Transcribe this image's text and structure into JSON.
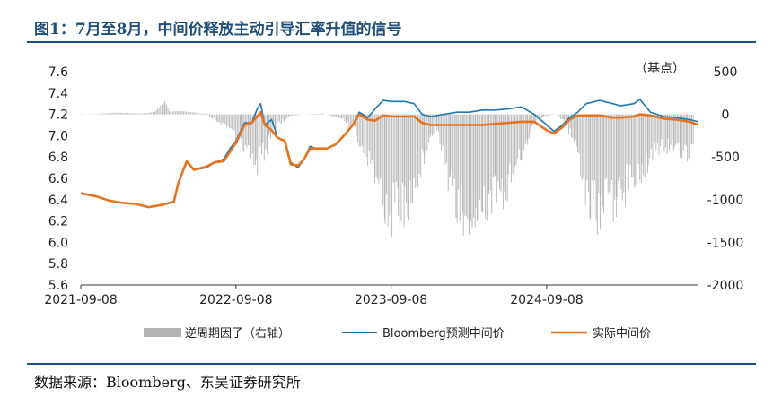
{
  "title": "图1：7月至8月，中间价释放主动引导汇率升值的信号",
  "source": "数据来源：Bloomberg、东吴证券研究所",
  "colors": {
    "title": "#1f4e79",
    "bloomberg": "#1f77b4",
    "actual": "#e8731e",
    "factor": "#b3b3b3"
  },
  "chart_data": {
    "type": "line",
    "title": "",
    "y_right_unit": "（基点）",
    "x_tick_labels": [
      "2021-09-08",
      "2022-09-08",
      "2023-09-08",
      "2024-09-08"
    ],
    "x_range": [
      "2021-09-08",
      "2025-08-31"
    ],
    "y_left_ticks": [
      "7.6",
      "7.4",
      "7.2",
      "7.0",
      "6.8",
      "6.6",
      "6.4",
      "6.2",
      "6.0",
      "5.8",
      "5.6"
    ],
    "y_left_range": [
      5.6,
      7.6
    ],
    "y_right_ticks": [
      "500",
      "0",
      "-500",
      "-1000",
      "-1500",
      "-2000"
    ],
    "y_right_range": [
      -2000,
      500
    ],
    "grid": false,
    "legend_position": "bottom",
    "series": [
      {
        "name": "逆周期因子（右轴）",
        "type": "bar",
        "axis": "right",
        "points": [
          [
            "2021-09-08",
            -5
          ],
          [
            "2021-12-01",
            20
          ],
          [
            "2022-02-01",
            10
          ],
          [
            "2022-03-01",
            30
          ],
          [
            "2022-03-25",
            150
          ],
          [
            "2022-04-05",
            30
          ],
          [
            "2022-05-01",
            40
          ],
          [
            "2022-07-01",
            5
          ],
          [
            "2022-08-10",
            -150
          ],
          [
            "2022-09-01",
            -250
          ],
          [
            "2022-09-20",
            -450
          ],
          [
            "2022-10-10",
            -550
          ],
          [
            "2022-10-25",
            -800
          ],
          [
            "2022-11-10",
            -600
          ],
          [
            "2022-11-25",
            -400
          ],
          [
            "2022-12-10",
            -200
          ],
          [
            "2023-01-10",
            -20
          ],
          [
            "2023-02-15",
            0
          ],
          [
            "2023-04-01",
            10
          ],
          [
            "2023-05-15",
            -50
          ],
          [
            "2023-06-15",
            -250
          ],
          [
            "2023-07-05",
            -550
          ],
          [
            "2023-07-25",
            -700
          ],
          [
            "2023-08-10",
            -1000
          ],
          [
            "2023-08-25",
            -1300
          ],
          [
            "2023-09-10",
            -1450
          ],
          [
            "2023-09-25",
            -1400
          ],
          [
            "2023-10-10",
            -1350
          ],
          [
            "2023-10-25",
            -1200
          ],
          [
            "2023-11-10",
            -900
          ],
          [
            "2023-11-25",
            -600
          ],
          [
            "2023-12-10",
            -300
          ],
          [
            "2023-12-25",
            -200
          ],
          [
            "2024-01-10",
            -700
          ],
          [
            "2024-01-25",
            -1100
          ],
          [
            "2024-02-10",
            -1300
          ],
          [
            "2024-02-25",
            -1450
          ],
          [
            "2024-03-10",
            -1500
          ],
          [
            "2024-03-25",
            -1450
          ],
          [
            "2024-04-10",
            -1400
          ],
          [
            "2024-04-25",
            -1300
          ],
          [
            "2024-05-10",
            -1200
          ],
          [
            "2024-05-25",
            -1150
          ],
          [
            "2024-06-10",
            -1000
          ],
          [
            "2024-06-25",
            -800
          ],
          [
            "2024-07-10",
            -600
          ],
          [
            "2024-07-25",
            -400
          ],
          [
            "2024-08-10",
            -150
          ],
          [
            "2024-09-01",
            -20
          ],
          [
            "2024-10-01",
            0
          ],
          [
            "2024-10-20",
            -100
          ],
          [
            "2024-11-05",
            -300
          ],
          [
            "2024-11-20",
            -600
          ],
          [
            "2024-12-05",
            -1000
          ],
          [
            "2024-12-20",
            -1300
          ],
          [
            "2025-01-05",
            -1450
          ],
          [
            "2025-01-20",
            -1300
          ],
          [
            "2025-02-05",
            -1200
          ],
          [
            "2025-02-20",
            -1350
          ],
          [
            "2025-03-05",
            -1150
          ],
          [
            "2025-03-20",
            -1000
          ],
          [
            "2025-04-05",
            -850
          ],
          [
            "2025-04-20",
            -900
          ],
          [
            "2025-05-05",
            -700
          ],
          [
            "2025-05-20",
            -550
          ],
          [
            "2025-06-05",
            -450
          ],
          [
            "2025-06-20",
            -500
          ],
          [
            "2025-07-05",
            -450
          ],
          [
            "2025-07-20",
            -550
          ],
          [
            "2025-08-05",
            -600
          ],
          [
            "2025-08-20",
            -400
          ]
        ]
      },
      {
        "name": "Bloomberg预测中间价",
        "type": "line",
        "axis": "left",
        "points": [
          [
            "2021-09-08",
            6.46
          ],
          [
            "2021-10-15",
            6.43
          ],
          [
            "2021-11-15",
            6.39
          ],
          [
            "2021-12-15",
            6.37
          ],
          [
            "2022-01-15",
            6.36
          ],
          [
            "2022-02-15",
            6.33
          ],
          [
            "2022-03-15",
            6.35
          ],
          [
            "2022-04-15",
            6.38
          ],
          [
            "2022-04-25",
            6.55
          ],
          [
            "2022-05-15",
            6.75
          ],
          [
            "2022-06-01",
            6.68
          ],
          [
            "2022-07-01",
            6.7
          ],
          [
            "2022-07-20",
            6.75
          ],
          [
            "2022-08-10",
            6.78
          ],
          [
            "2022-08-25",
            6.88
          ],
          [
            "2022-09-08",
            6.95
          ],
          [
            "2022-09-28",
            7.12
          ],
          [
            "2022-10-15",
            7.12
          ],
          [
            "2022-10-28",
            7.25
          ],
          [
            "2022-11-05",
            7.3
          ],
          [
            "2022-11-15",
            7.1
          ],
          [
            "2022-12-01",
            7.15
          ],
          [
            "2022-12-15",
            6.98
          ],
          [
            "2023-01-01",
            6.95
          ],
          [
            "2023-01-15",
            6.75
          ],
          [
            "2023-02-01",
            6.7
          ],
          [
            "2023-02-15",
            6.78
          ],
          [
            "2023-03-01",
            6.9
          ],
          [
            "2023-03-15",
            6.88
          ],
          [
            "2023-04-10",
            6.88
          ],
          [
            "2023-05-01",
            6.92
          ],
          [
            "2023-05-20",
            7.0
          ],
          [
            "2023-06-10",
            7.1
          ],
          [
            "2023-06-25",
            7.22
          ],
          [
            "2023-07-15",
            7.17
          ],
          [
            "2023-08-01",
            7.25
          ],
          [
            "2023-08-20",
            7.33
          ],
          [
            "2023-09-10",
            7.32
          ],
          [
            "2023-10-10",
            7.32
          ],
          [
            "2023-11-01",
            7.3
          ],
          [
            "2023-11-20",
            7.2
          ],
          [
            "2023-12-10",
            7.18
          ],
          [
            "2024-01-10",
            7.2
          ],
          [
            "2024-02-10",
            7.22
          ],
          [
            "2024-03-10",
            7.22
          ],
          [
            "2024-04-10",
            7.24
          ],
          [
            "2024-05-10",
            7.24
          ],
          [
            "2024-06-10",
            7.25
          ],
          [
            "2024-07-10",
            7.27
          ],
          [
            "2024-08-10",
            7.2
          ],
          [
            "2024-09-08",
            7.1
          ],
          [
            "2024-09-25",
            7.04
          ],
          [
            "2024-10-15",
            7.1
          ],
          [
            "2024-11-01",
            7.17
          ],
          [
            "2024-11-20",
            7.22
          ],
          [
            "2024-12-10",
            7.3
          ],
          [
            "2025-01-10",
            7.33
          ],
          [
            "2025-02-10",
            7.3
          ],
          [
            "2025-03-01",
            7.28
          ],
          [
            "2025-04-01",
            7.3
          ],
          [
            "2025-04-15",
            7.34
          ],
          [
            "2025-05-10",
            7.22
          ],
          [
            "2025-06-10",
            7.18
          ],
          [
            "2025-07-10",
            7.17
          ],
          [
            "2025-08-10",
            7.15
          ],
          [
            "2025-08-31",
            7.13
          ]
        ]
      },
      {
        "name": "实际中间价",
        "type": "line",
        "axis": "left",
        "points": [
          [
            "2021-09-08",
            6.46
          ],
          [
            "2021-10-15",
            6.43
          ],
          [
            "2021-11-15",
            6.39
          ],
          [
            "2021-12-15",
            6.37
          ],
          [
            "2022-01-15",
            6.36
          ],
          [
            "2022-02-15",
            6.33
          ],
          [
            "2022-03-15",
            6.35
          ],
          [
            "2022-04-15",
            6.38
          ],
          [
            "2022-04-25",
            6.55
          ],
          [
            "2022-05-15",
            6.76
          ],
          [
            "2022-06-01",
            6.68
          ],
          [
            "2022-07-01",
            6.71
          ],
          [
            "2022-07-20",
            6.75
          ],
          [
            "2022-08-10",
            6.76
          ],
          [
            "2022-08-25",
            6.85
          ],
          [
            "2022-09-08",
            6.93
          ],
          [
            "2022-09-28",
            7.1
          ],
          [
            "2022-10-15",
            7.12
          ],
          [
            "2022-10-28",
            7.18
          ],
          [
            "2022-11-05",
            7.22
          ],
          [
            "2022-11-15",
            7.1
          ],
          [
            "2022-12-01",
            7.05
          ],
          [
            "2022-12-15",
            6.98
          ],
          [
            "2023-01-01",
            6.95
          ],
          [
            "2023-01-15",
            6.73
          ],
          [
            "2023-02-01",
            6.72
          ],
          [
            "2023-02-15",
            6.78
          ],
          [
            "2023-03-01",
            6.88
          ],
          [
            "2023-03-15",
            6.88
          ],
          [
            "2023-04-10",
            6.88
          ],
          [
            "2023-05-01",
            6.92
          ],
          [
            "2023-05-20",
            7.0
          ],
          [
            "2023-06-10",
            7.1
          ],
          [
            "2023-06-25",
            7.2
          ],
          [
            "2023-07-15",
            7.15
          ],
          [
            "2023-08-01",
            7.14
          ],
          [
            "2023-08-20",
            7.19
          ],
          [
            "2023-09-10",
            7.18
          ],
          [
            "2023-10-10",
            7.18
          ],
          [
            "2023-11-01",
            7.18
          ],
          [
            "2023-11-20",
            7.12
          ],
          [
            "2023-12-10",
            7.1
          ],
          [
            "2024-01-10",
            7.1
          ],
          [
            "2024-02-10",
            7.1
          ],
          [
            "2024-03-10",
            7.1
          ],
          [
            "2024-04-10",
            7.1
          ],
          [
            "2024-05-10",
            7.11
          ],
          [
            "2024-06-10",
            7.12
          ],
          [
            "2024-07-10",
            7.13
          ],
          [
            "2024-08-10",
            7.13
          ],
          [
            "2024-09-08",
            7.05
          ],
          [
            "2024-09-25",
            7.02
          ],
          [
            "2024-10-15",
            7.08
          ],
          [
            "2024-11-01",
            7.15
          ],
          [
            "2024-11-20",
            7.19
          ],
          [
            "2024-12-10",
            7.19
          ],
          [
            "2025-01-10",
            7.19
          ],
          [
            "2025-02-10",
            7.17
          ],
          [
            "2025-03-01",
            7.17
          ],
          [
            "2025-04-01",
            7.18
          ],
          [
            "2025-04-15",
            7.2
          ],
          [
            "2025-05-10",
            7.19
          ],
          [
            "2025-06-10",
            7.16
          ],
          [
            "2025-07-10",
            7.15
          ],
          [
            "2025-08-10",
            7.13
          ],
          [
            "2025-08-31",
            7.1
          ]
        ]
      }
    ]
  }
}
